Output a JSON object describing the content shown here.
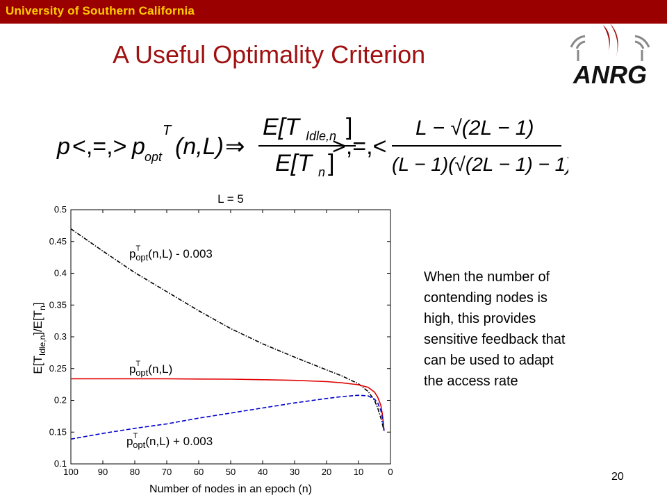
{
  "header": {
    "university": "University of Southern California"
  },
  "slide": {
    "title": "A Useful Optimality Criterion",
    "logo_text": "ANRG",
    "page_number": "20"
  },
  "formula": {
    "lhs_p": "p",
    "relations": "<,=,>",
    "p_opt": "p",
    "opt_sub": "opt",
    "sup_T": "T",
    "args": "(n,L)",
    "implies": "⇒",
    "num_E": "E[T",
    "num_sub": "Idle,n",
    "num_close": "]",
    "den_E": "E[T",
    "den_sub": "n",
    "den_close": "]",
    "relations2": ">,=,<",
    "rhs_num": "L − √(2L − 1)",
    "rhs_den": "(L − 1)(√(2L − 1) − 1)"
  },
  "note": {
    "lines": [
      "When the number of",
      "contending nodes is",
      "high, this provides",
      "sensitive feedback that",
      "can be used to adapt",
      "the access rate"
    ]
  },
  "chart_data": {
    "type": "line",
    "title": "L = 5",
    "xlabel": "Number of nodes in an epoch (n)",
    "ylabel": "E[T_Idle,n]/E[T_n]",
    "ylabel_parts": {
      "a": "E[T",
      "b": "Idle,n",
      "c": "]/E[T",
      "d": "n",
      "e": "]"
    },
    "xlim": [
      100,
      0
    ],
    "ylim": [
      0.1,
      0.5
    ],
    "x_reversed": true,
    "x_ticks": [
      100,
      90,
      80,
      70,
      60,
      50,
      40,
      30,
      20,
      10,
      0
    ],
    "y_ticks": [
      "0.1",
      "0.15",
      "0.2",
      "0.25",
      "0.3",
      "0.35",
      "0.4",
      "0.45",
      "0.5"
    ],
    "grid": false,
    "series": [
      {
        "name": "p_opt^T(n,L) - 0.003",
        "label_main": "p",
        "label_sup": "T",
        "label_sub": "opt",
        "label_rest": "(n,L) - 0.003",
        "color": "#000000",
        "style": "dashdot",
        "x": [
          100,
          90,
          80,
          70,
          60,
          50,
          40,
          30,
          20,
          15,
          10,
          7,
          5,
          4,
          3,
          2.5,
          2
        ],
        "y": [
          0.47,
          0.435,
          0.401,
          0.371,
          0.341,
          0.313,
          0.289,
          0.268,
          0.248,
          0.238,
          0.226,
          0.214,
          0.2,
          0.188,
          0.172,
          0.162,
          0.152
        ]
      },
      {
        "name": "p_opt^T(n,L)",
        "label_main": "p",
        "label_sup": "T",
        "label_sub": "opt",
        "label_rest": "(n,L)",
        "color": "#e00000",
        "style": "solid",
        "x": [
          100,
          90,
          80,
          70,
          60,
          50,
          40,
          30,
          20,
          15,
          10,
          7,
          5,
          4,
          3,
          2.5,
          2
        ],
        "y": [
          0.234,
          0.234,
          0.234,
          0.234,
          0.2335,
          0.2333,
          0.2325,
          0.2315,
          0.2295,
          0.2275,
          0.2245,
          0.2205,
          0.213,
          0.205,
          0.192,
          0.177,
          0.152
        ]
      },
      {
        "name": "p_opt^T(n,L) + 0.003",
        "label_main": "p",
        "label_sup": "T",
        "label_sub": "opt",
        "label_rest": "(n,L) + 0.003",
        "color": "#0000cc",
        "style": "dashed",
        "x": [
          100,
          90,
          80,
          70,
          60,
          50,
          40,
          30,
          20,
          15,
          10,
          7,
          5,
          4,
          3,
          2.5,
          2
        ],
        "y": [
          0.139,
          0.148,
          0.156,
          0.163,
          0.172,
          0.18,
          0.188,
          0.196,
          0.203,
          0.206,
          0.208,
          0.207,
          0.202,
          0.196,
          0.184,
          0.172,
          0.152
        ]
      }
    ]
  }
}
